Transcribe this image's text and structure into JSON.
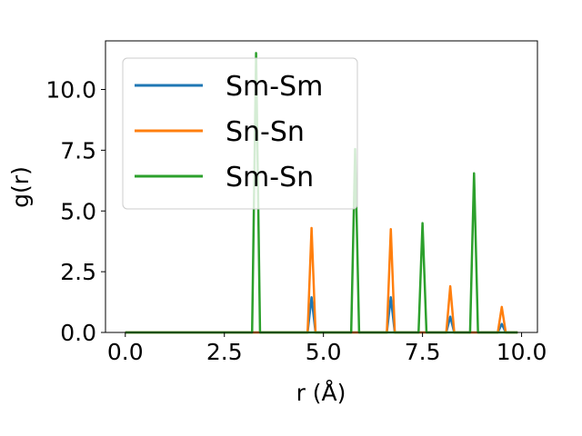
{
  "chart_data": {
    "type": "line",
    "xlabel": "r (Å)",
    "ylabel": "g(r)",
    "xlim": [
      -0.5,
      10.4
    ],
    "ylim": [
      0,
      12.0
    ],
    "xticks": [
      "0.0",
      "2.5",
      "5.0",
      "7.5",
      "10.0"
    ],
    "yticks": [
      "0.0",
      "2.5",
      "5.0",
      "7.5",
      "10.0"
    ],
    "grid": false,
    "legend_position": "top-left",
    "series": [
      {
        "name": "Sm-Sm",
        "color": "#1f77b4",
        "x": [
          0.0,
          4.6,
          4.7,
          4.8,
          6.6,
          6.7,
          6.8,
          8.1,
          8.2,
          8.3,
          9.4,
          9.5,
          9.6,
          9.9
        ],
        "y": [
          0.0,
          0.0,
          1.45,
          0.0,
          0.0,
          1.45,
          0.0,
          0.0,
          0.65,
          0.0,
          0.0,
          0.35,
          0.0,
          0.0
        ]
      },
      {
        "name": "Sn-Sn",
        "color": "#ff7f0e",
        "x": [
          0.0,
          4.6,
          4.7,
          4.8,
          6.6,
          6.7,
          6.8,
          8.1,
          8.2,
          8.3,
          9.4,
          9.5,
          9.6,
          9.9
        ],
        "y": [
          0.0,
          0.0,
          4.3,
          0.0,
          0.0,
          4.25,
          0.0,
          0.0,
          1.9,
          0.0,
          0.0,
          1.05,
          0.0,
          0.0
        ]
      },
      {
        "name": "Sm-Sn",
        "color": "#2ca02c",
        "x": [
          0.0,
          3.2,
          3.3,
          3.4,
          5.7,
          5.8,
          5.9,
          7.4,
          7.5,
          7.6,
          8.7,
          8.8,
          8.9,
          9.9
        ],
        "y": [
          0.0,
          0.0,
          11.5,
          0.0,
          0.0,
          7.55,
          0.0,
          0.0,
          4.5,
          0.0,
          0.0,
          6.55,
          0.0,
          0.0
        ]
      }
    ]
  }
}
